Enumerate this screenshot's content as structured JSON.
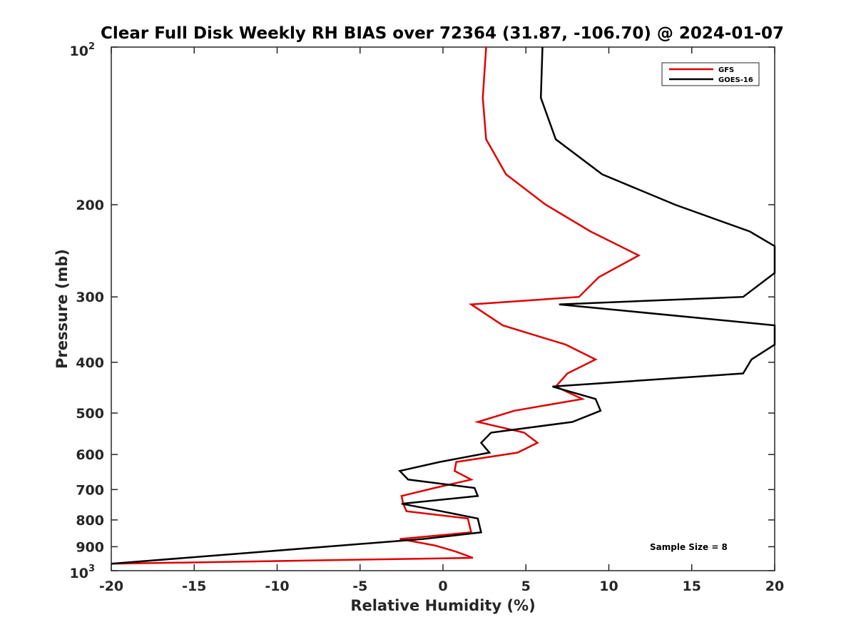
{
  "chart_data": {
    "type": "line",
    "title": "Clear Full Disk Weekly RH BIAS over 72364 (31.87, -106.70) @ 2024-01-07",
    "xlabel": "Relative Humidity (%)",
    "ylabel": "Pressure (mb)",
    "xlim": [
      -20,
      20
    ],
    "ylim": [
      100,
      1000
    ],
    "y_scale": "log",
    "y_reversed": true,
    "x_ticks": [
      -20,
      -15,
      -10,
      -5,
      0,
      5,
      10,
      15,
      20
    ],
    "x_tick_labels": [
      "-20",
      "-15",
      "-10",
      "-5",
      "0",
      "5",
      "10",
      "15",
      "20"
    ],
    "y_ticks": [
      200,
      300,
      400,
      500,
      600,
      700,
      800,
      900
    ],
    "y_tick_labels": [
      "200",
      "300",
      "400",
      "500",
      "600",
      "700",
      "800",
      "900"
    ],
    "y_tick_exp_base": "10",
    "y_tick_exp_top": "2",
    "y_tick_exp_bottom": "3",
    "grid": false,
    "legend_position": "top-right",
    "annotation": "Sample Size = 8",
    "series": [
      {
        "name": "GFS",
        "color": "#e00000",
        "points": [
          [
            2.6,
            100
          ],
          [
            2.4,
            125
          ],
          [
            2.6,
            150
          ],
          [
            3.8,
            175
          ],
          [
            6.2,
            200
          ],
          [
            8.9,
            225
          ],
          [
            11.8,
            250
          ],
          [
            9.4,
            275
          ],
          [
            8.2,
            300
          ],
          [
            1.7,
            310
          ],
          [
            3.6,
            340
          ],
          [
            7.4,
            370
          ],
          [
            9.2,
            395
          ],
          [
            7.5,
            420
          ],
          [
            6.8,
            445
          ],
          [
            8.4,
            470
          ],
          [
            4.3,
            495
          ],
          [
            2.1,
            520
          ],
          [
            4.9,
            545
          ],
          [
            5.7,
            570
          ],
          [
            4.5,
            595
          ],
          [
            0.8,
            620
          ],
          [
            0.7,
            645
          ],
          [
            1.7,
            670
          ],
          [
            -0.5,
            695
          ],
          [
            -2.5,
            720
          ],
          [
            -2.4,
            745
          ],
          [
            -2.2,
            770
          ],
          [
            1.5,
            795
          ],
          [
            1.6,
            820
          ],
          [
            1.7,
            845
          ],
          [
            -2.6,
            870
          ],
          [
            -0.5,
            895
          ],
          [
            0.8,
            920
          ],
          [
            1.8,
            945
          ],
          [
            -20,
            970
          ]
        ]
      },
      {
        "name": "GOES-16",
        "color": "#000000",
        "points": [
          [
            6.0,
            100
          ],
          [
            5.9,
            125
          ],
          [
            6.8,
            150
          ],
          [
            9.6,
            175
          ],
          [
            14,
            200
          ],
          [
            18.5,
            225
          ],
          [
            20,
            240
          ],
          [
            20,
            270
          ],
          [
            18.1,
            300
          ],
          [
            7,
            310
          ],
          [
            20,
            340
          ],
          [
            20,
            370
          ],
          [
            18.6,
            395
          ],
          [
            18.1,
            420
          ],
          [
            6.6,
            445
          ],
          [
            9.2,
            470
          ],
          [
            9.5,
            495
          ],
          [
            7.8,
            520
          ],
          [
            2.9,
            545
          ],
          [
            2.3,
            570
          ],
          [
            2.8,
            595
          ],
          [
            -0.2,
            620
          ],
          [
            -2.6,
            645
          ],
          [
            -2.1,
            670
          ],
          [
            1.9,
            695
          ],
          [
            2.1,
            720
          ],
          [
            -2.5,
            745
          ],
          [
            -0.1,
            770
          ],
          [
            2.1,
            795
          ],
          [
            2.2,
            820
          ],
          [
            2.3,
            845
          ],
          [
            -1.2,
            870
          ],
          [
            -20,
            970
          ]
        ]
      }
    ]
  }
}
